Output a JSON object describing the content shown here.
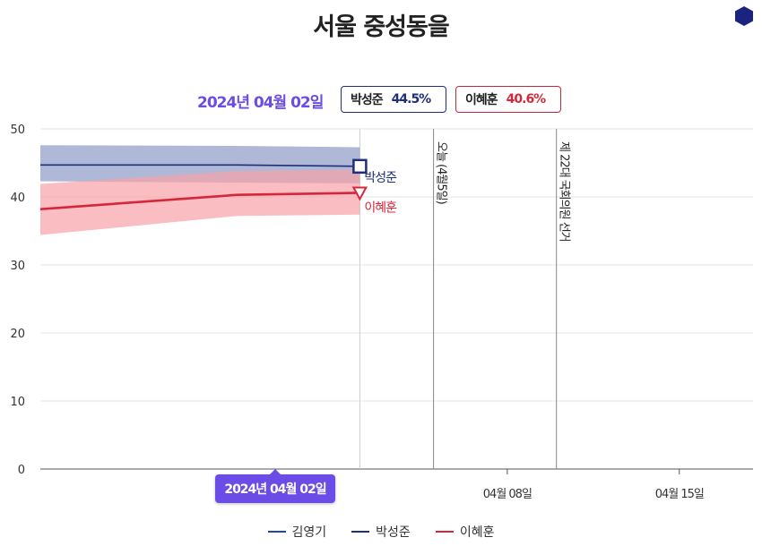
{
  "title": "서울 중성동을",
  "header": {
    "date": "2024년 04월 02일",
    "chips": [
      {
        "name": "박성준",
        "value": "44.5%",
        "color": "#1f2f7a"
      },
      {
        "name": "이혜훈",
        "value": "40.6%",
        "color": "#d22a3a"
      }
    ]
  },
  "tooltip_date": "2024년 04월 02일",
  "hex_color": "#1a237e",
  "chart_data": {
    "type": "line",
    "x_range": [
      "2024-03-20",
      "2024-04-18"
    ],
    "ylim": [
      0,
      50
    ],
    "y_ticks": [
      0,
      10,
      20,
      30,
      40,
      50
    ],
    "x_ticks": [
      {
        "date": "2024-04-08",
        "label": "04월 08일"
      },
      {
        "date": "2024-04-15",
        "label": "04월 15일"
      }
    ],
    "grid": true,
    "series": [
      {
        "name": "박성준",
        "color": "#1f2f7a",
        "band_color": "#8f9ac8",
        "marker": "square",
        "end_label": "박성준",
        "points": [
          {
            "x": "2024-03-20",
            "y": 44.7,
            "lo": 42.3,
            "hi": 47.6
          },
          {
            "x": "2024-03-28",
            "y": 44.7,
            "lo": 42.1,
            "hi": 47.5
          },
          {
            "x": "2024-04-02",
            "y": 44.5,
            "lo": 42.0,
            "hi": 47.3
          }
        ]
      },
      {
        "name": "이혜훈",
        "color": "#d7263a",
        "band_color": "#f7a1a8",
        "marker": "triangle-down",
        "end_label": "이혜훈",
        "points": [
          {
            "x": "2024-03-20",
            "y": 38.2,
            "lo": 34.4,
            "hi": 41.9
          },
          {
            "x": "2024-03-28",
            "y": 40.3,
            "lo": 37.2,
            "hi": 43.8
          },
          {
            "x": "2024-04-02",
            "y": 40.6,
            "lo": 37.4,
            "hi": 44.0
          }
        ]
      }
    ],
    "events": [
      {
        "date": "2024-04-05",
        "label": "오늘 (4월5일)"
      },
      {
        "date": "2024-04-10",
        "label": "제 22대 국회의원 선거"
      }
    ],
    "cursor_date": "2024-04-02",
    "legend": [
      {
        "name": "김영기",
        "color": "#1f4aa8"
      },
      {
        "name": "박성준",
        "color": "#1f2f7a"
      },
      {
        "name": "이혜훈",
        "color": "#d7263a"
      }
    ],
    "legend_position": "bottom"
  }
}
